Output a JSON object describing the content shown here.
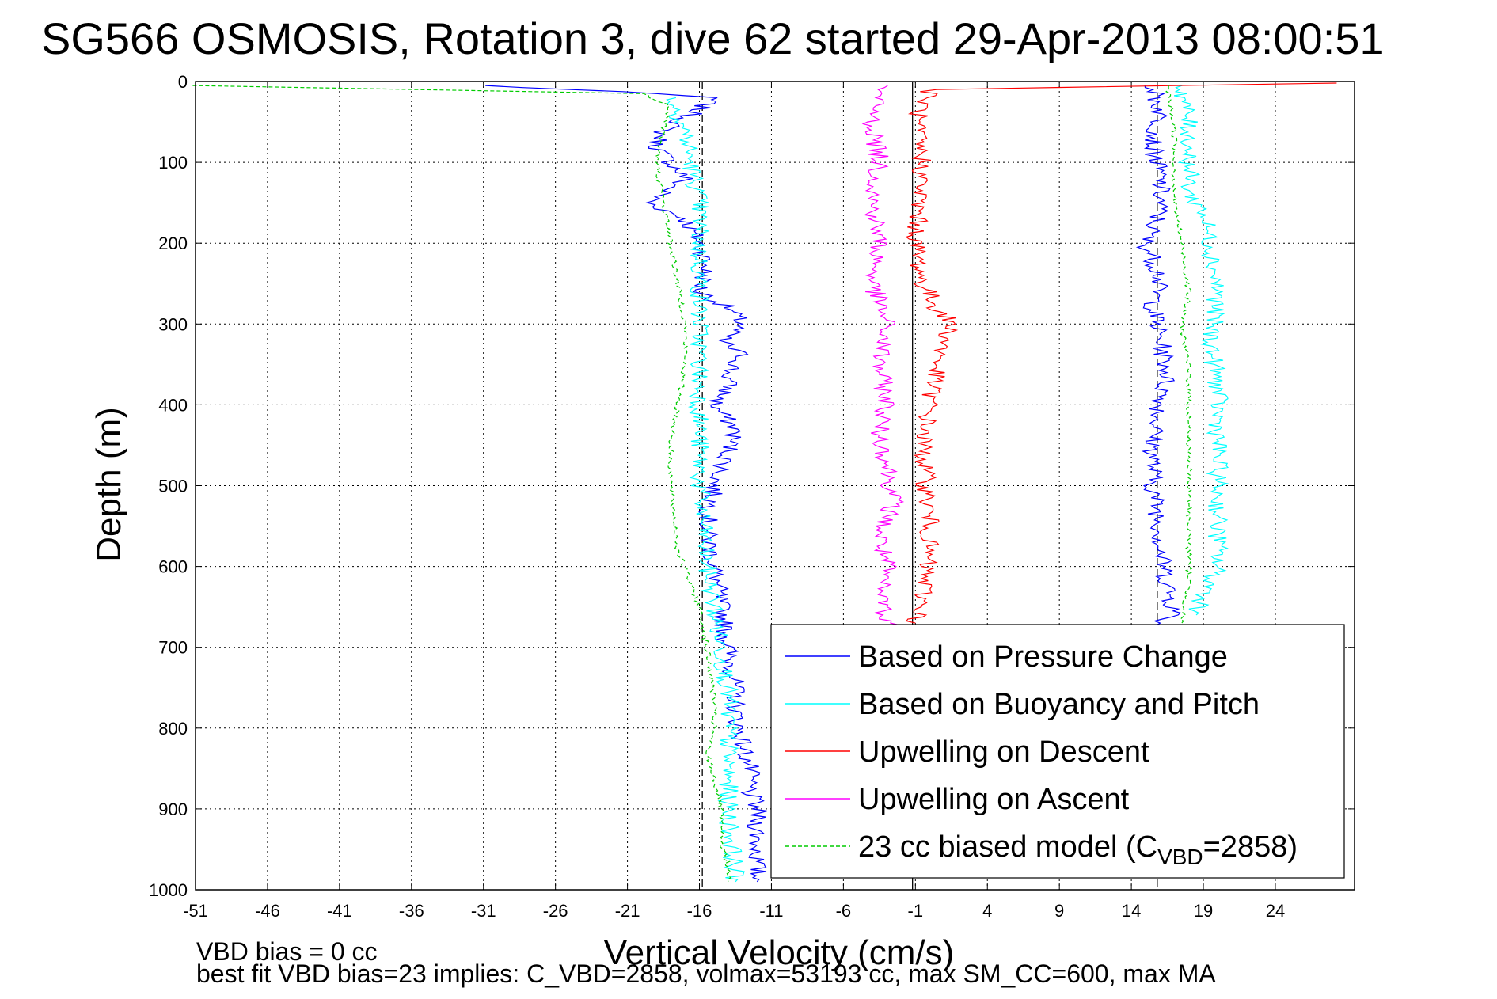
{
  "chart_data": {
    "type": "line",
    "title": "SG566 OSMOSIS, Rotation 3, dive 62 started 29-Apr-2013 08:00:51",
    "xlabel": "Vertical Velocity (cm/s)",
    "ylabel": "Depth (m)",
    "xlim": [
      -51,
      29.5
    ],
    "ylim": [
      0,
      1000
    ],
    "y_reversed": true,
    "grid": true,
    "x_ticks": [
      -51,
      -46,
      -41,
      -36,
      -31,
      -26,
      -21,
      -16,
      -11,
      -6,
      -1,
      4,
      9,
      14,
      19,
      24
    ],
    "y_ticks": [
      0,
      100,
      200,
      300,
      400,
      500,
      600,
      700,
      800,
      900,
      1000
    ],
    "reference_lines_x": [
      -15.8,
      -1.2,
      15.8
    ],
    "legend_position": "bottom-right",
    "annotations": [
      "VBD bias = 0 cc",
      "best fit VBD bias=23 implies: C_VBD=2858, volmax=53193 cc, max SM_CC=600, max MA"
    ],
    "series": [
      {
        "name": "Based on Pressure Change",
        "color": "#0000ff",
        "style": "solid",
        "segments": [
          {
            "x": [
              -31,
              -19,
              -15,
              -16.5,
              -18.5,
              -19,
              -18,
              -17,
              -19.5,
              -17,
              -16,
              -15.5,
              -16,
              -14,
              -13,
              -14.5,
              -13,
              -14,
              -14,
              -15,
              -13.5,
              -14,
              -15,
              -15.5,
              -15,
              -14.5,
              -14,
              -13.5,
              -13.5,
              -13,
              -12.5,
              -12.5,
              -12,
              -12,
              -12,
              -12
            ],
            "y": [
              5,
              15,
              20,
              40,
              60,
              80,
              100,
              120,
              150,
              170,
              200,
              230,
              260,
              280,
              300,
              320,
              340,
              360,
              380,
              400,
              430,
              460,
              500,
              550,
              600,
              650,
              700,
              750,
              780,
              820,
              850,
              880,
              900,
              940,
              970,
              990
            ]
          },
          {
            "x": [
              15.5,
              16,
              15.5,
              16,
              16,
              15,
              16,
              15.5,
              16,
              16.5,
              16,
              15.5,
              15.5,
              16,
              16,
              16.5,
              17,
              16,
              15.5
            ],
            "y": [
              5,
              40,
              80,
              120,
              160,
              200,
              240,
              280,
              320,
              360,
              400,
              450,
              500,
              550,
              580,
              620,
              660,
              670,
              675
            ]
          }
        ]
      },
      {
        "name": "Based on Buoyancy and Pitch",
        "color": "#00ffff",
        "style": "solid",
        "segments": [
          {
            "x": [
              -18,
              -17,
              -16.5,
              -16,
              -16,
              -16,
              -16,
              -16,
              -15.5,
              -15,
              -14.5,
              -14,
              -14,
              -14,
              -13.5
            ],
            "y": [
              20,
              60,
              110,
              150,
              200,
              300,
              400,
              500,
              600,
              650,
              700,
              760,
              800,
              900,
              990
            ]
          },
          {
            "x": [
              17.5,
              18,
              18,
              19,
              19.5,
              20,
              19.5,
              20,
              20,
              20,
              20,
              18.5
            ],
            "y": [
              5,
              60,
              140,
              160,
              200,
              260,
              320,
              380,
              420,
              500,
              600,
              660
            ]
          }
        ]
      },
      {
        "name": "Upwelling on Descent",
        "color": "#ff0000",
        "style": "solid",
        "segments": [
          {
            "x": [
              28,
              0,
              -1,
              -0.5,
              -1,
              -0.5,
              0.5,
              1.5,
              0.5,
              0,
              -0.5,
              0,
              -0.5,
              -1
            ],
            "y": [
              2,
              10,
              50,
              100,
              200,
              250,
              280,
              300,
              350,
              400,
              450,
              550,
              650,
              670
            ]
          }
        ]
      },
      {
        "name": "Upwelling on Ascent",
        "color": "#ff00ff",
        "style": "solid",
        "segments": [
          {
            "x": [
              -3.5,
              -4,
              -3.5,
              -4,
              -3.5,
              -4,
              -3,
              -3.5,
              -3,
              -3.5,
              -3,
              -2.5,
              -3.5,
              -3,
              -3.5,
              -3,
              -3.5,
              -2
            ],
            "y": [
              5,
              50,
              100,
              150,
              200,
              250,
              300,
              350,
              400,
              430,
              470,
              520,
              560,
              600,
              630,
              650,
              665,
              675
            ]
          }
        ]
      },
      {
        "name": "23 cc biased model (C<sub>VBD</sub>=2858)",
        "color": "#00cc00",
        "style": "dashed",
        "segments": [
          {
            "x": [
              -51,
              -20,
              -18,
              -18.5,
              -19,
              -18.5,
              -18,
              -17.5,
              -17,
              -17,
              -17.5,
              -18,
              -18,
              -17.5,
              -16,
              -15.5,
              -15,
              -15,
              -15.5,
              -15,
              -14.5,
              -14.5,
              -14,
              -14
            ],
            "y": [
              5,
              15,
              30,
              60,
              100,
              150,
              200,
              250,
              300,
              350,
              400,
              450,
              500,
              580,
              650,
              700,
              760,
              800,
              830,
              860,
              900,
              940,
              970,
              990
            ]
          },
          {
            "x": [
              16.5,
              17,
              17,
              17.5,
              18,
              17.5,
              18,
              18,
              18,
              18,
              18,
              18,
              17.5
            ],
            "y": [
              5,
              60,
              150,
              200,
              260,
              300,
              360,
              400,
              450,
              500,
              560,
              620,
              670
            ]
          }
        ]
      }
    ]
  },
  "legend": {
    "entries": [
      {
        "label": "Based on Pressure Change",
        "color": "#0000ff",
        "dashed": false
      },
      {
        "label": "Based on Buoyancy and Pitch",
        "color": "#00ffff",
        "dashed": false
      },
      {
        "label": "Upwelling on Descent",
        "color": "#ff0000",
        "dashed": false
      },
      {
        "label": "Upwelling on Ascent",
        "color": "#ff00ff",
        "dashed": false
      },
      {
        "label": "23 cc biased model (C",
        "sub": "VBD",
        "after": "=2858)",
        "color": "#00cc00",
        "dashed": true
      }
    ]
  },
  "footer": {
    "line1": "VBD bias = 0 cc",
    "line2": "best fit VBD bias=23 implies: C_VBD=2858, volmax=53193 cc, max SM_CC=600, max MA"
  }
}
